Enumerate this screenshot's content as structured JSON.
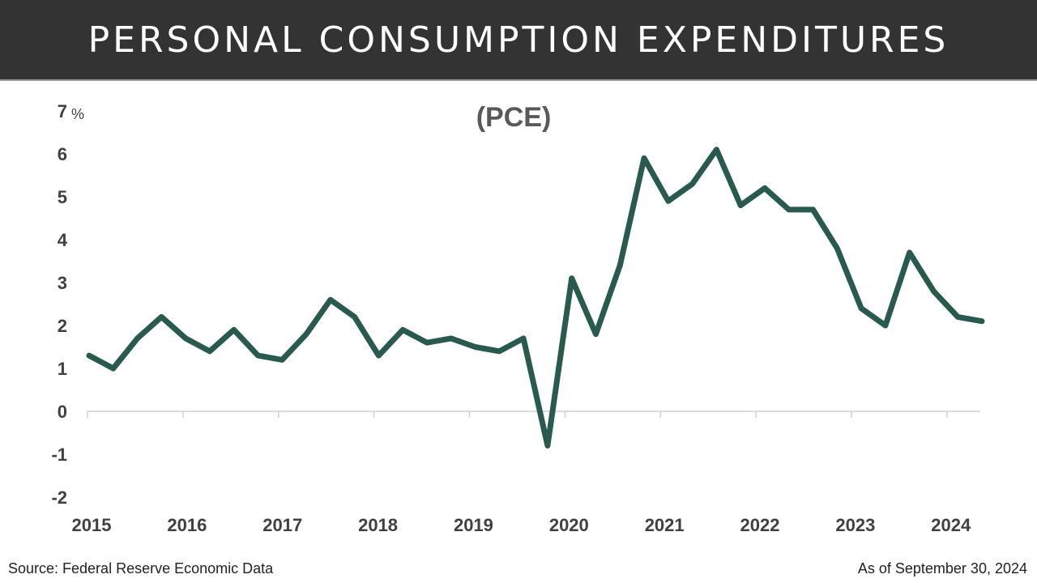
{
  "header": {
    "title": "PERSONAL CONSUMPTION EXPENDITURES"
  },
  "chart_data": {
    "type": "line",
    "title": "PERSONAL CONSUMPTION EXPENDITURES",
    "subtitle": "(PCE)",
    "unit": "%",
    "xlabel": "",
    "ylabel": "",
    "ylim": [
      -2,
      7
    ],
    "yticks": [
      "-2",
      "-1",
      "0",
      "1",
      "2",
      "3",
      "4",
      "5",
      "6",
      "7"
    ],
    "xticks": [
      "2015",
      "2016",
      "2017",
      "2018",
      "2019",
      "2020",
      "2021",
      "2022",
      "2023",
      "2024"
    ],
    "grid": false,
    "line_color": "#295a50",
    "series": [
      {
        "x": [
          "2015 Q1",
          "2015 Q2",
          "2015 Q3",
          "2015 Q4",
          "2016 Q1",
          "2016 Q2",
          "2016 Q3",
          "2016 Q4",
          "2017 Q1",
          "2017 Q2",
          "2017 Q3",
          "2017 Q4",
          "2018 Q1",
          "2018 Q2",
          "2018 Q3",
          "2018 Q4",
          "2019 Q1",
          "2019 Q2",
          "2019 Q3",
          "2019 Q4",
          "2020 Q1",
          "2020 Q2",
          "2020 Q3",
          "2020 Q4",
          "2021 Q1",
          "2021 Q2",
          "2021 Q3",
          "2021 Q4",
          "2022 Q1",
          "2022 Q2",
          "2022 Q3",
          "2022 Q4",
          "2023 Q1",
          "2023 Q2",
          "2023 Q3",
          "2023 Q4",
          "2024 Q1",
          "2024 Q2"
        ],
        "values": [
          1.3,
          1.0,
          1.7,
          2.2,
          1.7,
          1.4,
          1.9,
          1.3,
          1.2,
          1.8,
          2.6,
          2.2,
          1.3,
          1.9,
          1.6,
          1.7,
          1.5,
          1.4,
          1.7,
          -0.8,
          3.1,
          1.8,
          3.4,
          5.9,
          4.9,
          5.3,
          6.1,
          4.8,
          5.2,
          4.7,
          4.7,
          3.8,
          2.4,
          2.0,
          3.7,
          2.8,
          2.2,
          2.1
        ]
      }
    ]
  },
  "footer": {
    "source": "Source: Federal Reserve Economic Data",
    "as_of": "As of September 30, 2024"
  }
}
